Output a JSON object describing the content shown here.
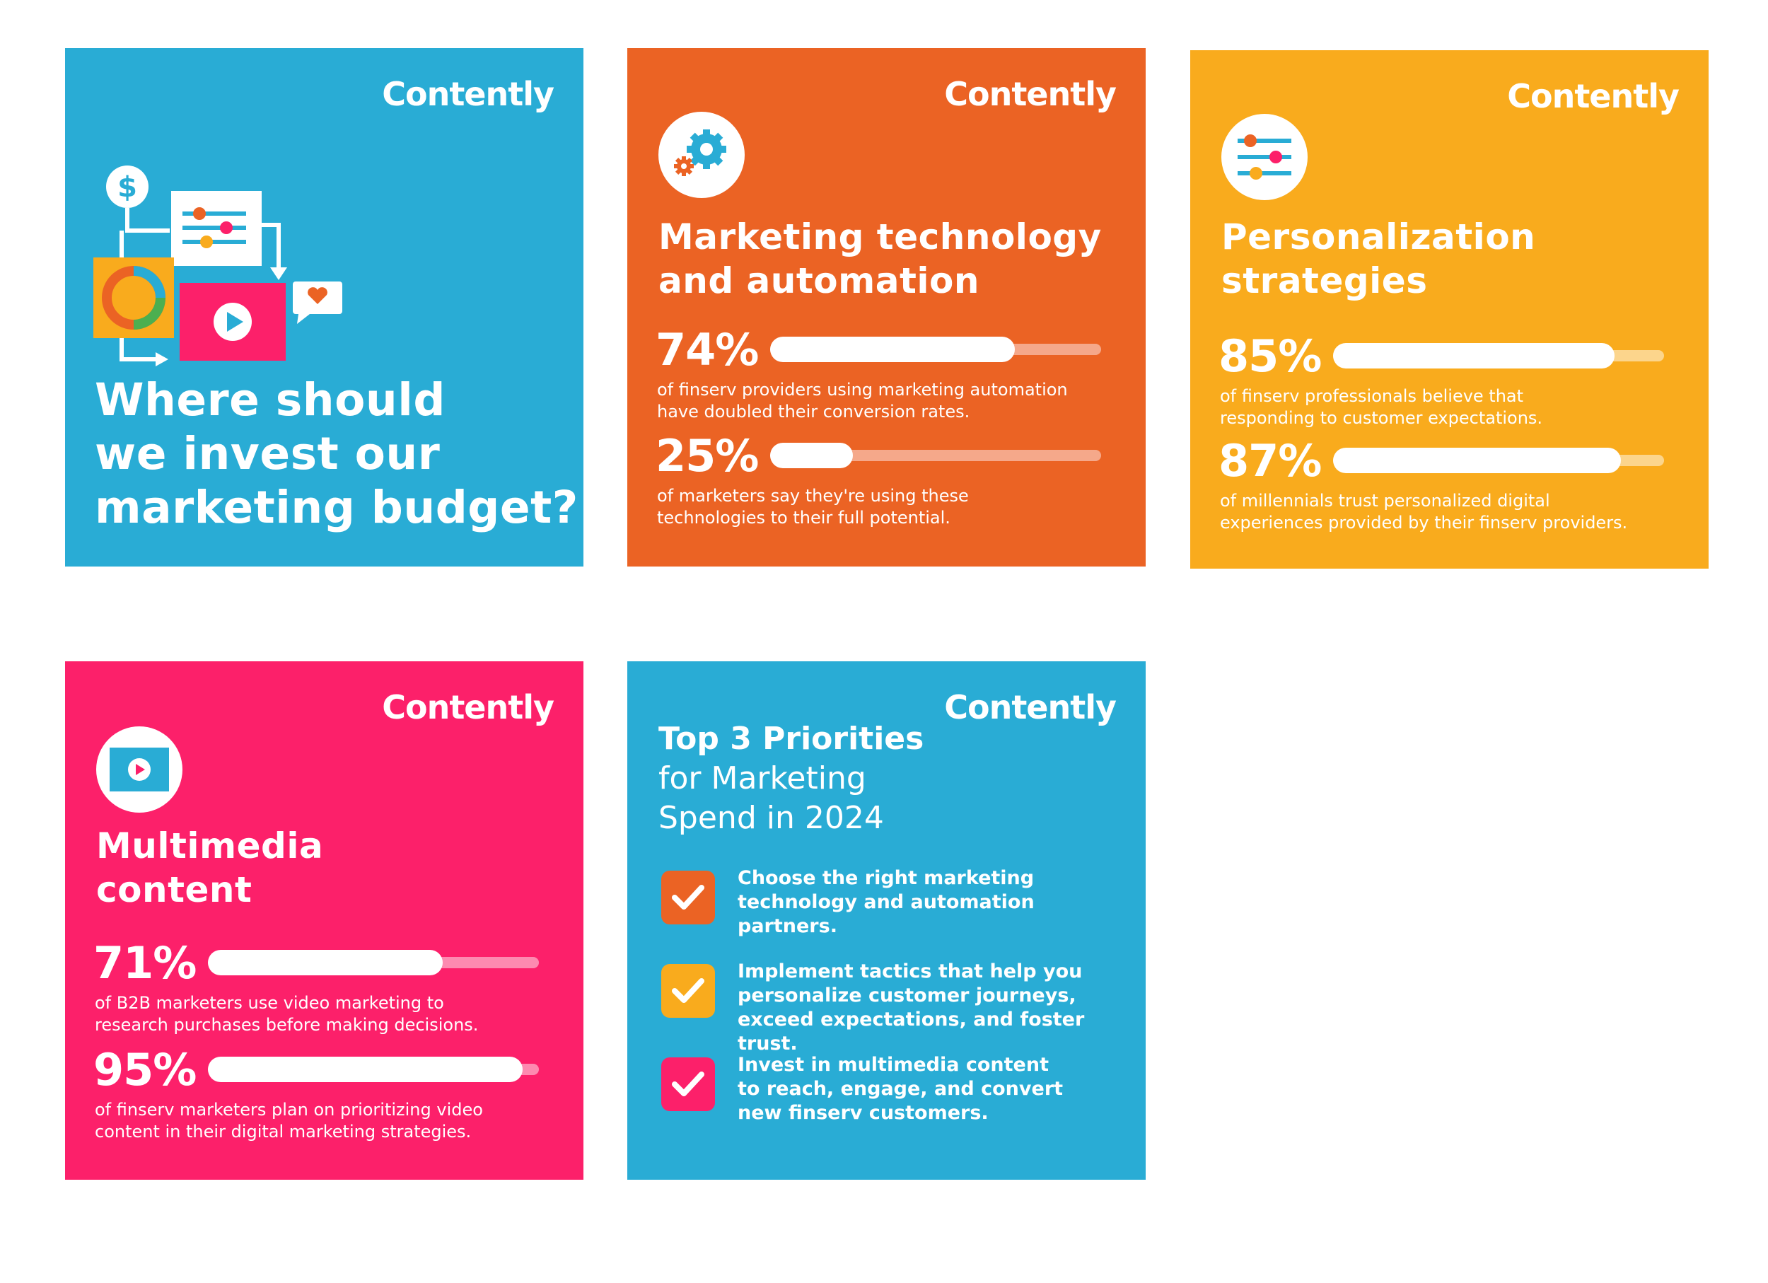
{
  "colors": {
    "blue": "#29ACD5",
    "orange": "#EB6324",
    "yellow": "#F9AB1D",
    "pink": "#FC206A",
    "white": "#FFFFFF"
  },
  "brand": "Contently",
  "card1": {
    "question": [
      "Where should",
      "we invest our",
      "marketing budget?"
    ],
    "illustration": "marketing-budget-illustration"
  },
  "card2": {
    "icon": "gears-icon",
    "title": [
      "Marketing technology",
      "and automation"
    ],
    "stats": [
      {
        "value": "74%",
        "fill": 0.74,
        "desc": [
          "of finserv providers using marketing automation",
          "have doubled their conversion rates."
        ]
      },
      {
        "value": "25%",
        "fill": 0.25,
        "desc": [
          "of marketers say they're using these",
          "technologies to their full potential."
        ]
      }
    ]
  },
  "card3": {
    "icon": "sliders-icon",
    "title": [
      "Personalization",
      "strategies"
    ],
    "stats": [
      {
        "value": "85%",
        "fill": 0.85,
        "desc": [
          "of finserv professionals believe that",
          "responding to customer expectations."
        ]
      },
      {
        "value": "87%",
        "fill": 0.87,
        "desc": [
          "of millennials trust personalized digital",
          "experiences provided by their finserv providers."
        ]
      }
    ]
  },
  "card4": {
    "icon": "video-play-icon",
    "title": [
      "Multimedia",
      "content"
    ],
    "stats": [
      {
        "value": "71%",
        "fill": 0.71,
        "desc": [
          "of B2B marketers use video marketing to",
          "research purchases before making decisions."
        ]
      },
      {
        "value": "95%",
        "fill": 0.95,
        "desc": [
          "of finserv marketers plan on prioritizing video",
          "content in their digital marketing strategies."
        ]
      }
    ]
  },
  "card5": {
    "title_bold": "Top 3 Priorities",
    "title_light": [
      "for Marketing",
      "Spend in 2024"
    ],
    "priorities": [
      {
        "color": "#EB6324",
        "lines": [
          "Choose the right marketing",
          "technology and automation",
          "partners."
        ]
      },
      {
        "color": "#F9AB1D",
        "lines": [
          "Implement tactics that help you",
          "personalize customer journeys,",
          "exceed expectations, and foster trust."
        ]
      },
      {
        "color": "#FC206A",
        "lines": [
          "Invest in multimedia content",
          "to reach, engage, and convert",
          "new finserv customers."
        ]
      }
    ]
  }
}
